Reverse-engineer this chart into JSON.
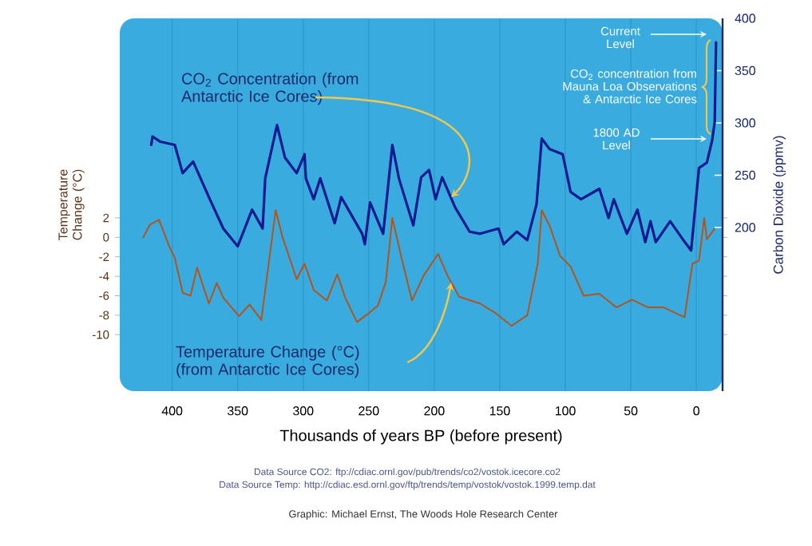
{
  "chart_data": {
    "type": "line",
    "xlabel": "Thousands of years BP (before present)",
    "ylabel": "Temperature Change (°C)",
    "y2label": "Carbon Dioxide (ppmv)",
    "xlim": [
      440,
      -20
    ],
    "xticks": [
      400,
      350,
      300,
      250,
      200,
      150,
      100,
      50,
      0
    ],
    "ylim": [
      -15.8,
      22.5
    ],
    "yticks": [
      -10,
      -8,
      -6,
      -4,
      -2,
      0,
      2
    ],
    "y2lim": [
      43.5,
      400
    ],
    "y2ticks": [
      200,
      250,
      300,
      350,
      400
    ],
    "grid": "x",
    "marker": "none",
    "line_style": "solid",
    "series": [
      {
        "axis": "y2",
        "color": "#0b1a8f",
        "x": [
          416,
          415,
          409,
          398,
          392,
          384,
          372,
          361,
          350,
          339,
          331,
          329,
          320,
          314,
          305,
          299,
          298,
          292,
          287,
          276,
          271,
          255,
          253,
          249,
          239,
          232,
          227,
          216,
          210,
          204,
          199,
          194,
          184,
          173,
          165,
          151,
          147,
          137,
          129,
          122,
          118,
          112,
          102,
          96,
          88,
          74,
          67,
          63,
          53,
          45,
          39,
          35,
          31,
          20,
          10,
          4,
          -2,
          -8,
          -12,
          -14,
          -15
        ],
        "values": [
          279,
          287,
          282,
          279,
          252,
          263,
          229,
          199,
          182,
          217,
          199,
          247,
          298,
          267,
          252,
          270,
          247,
          227,
          247,
          204,
          229,
          194,
          184,
          224,
          194,
          279,
          247,
          202,
          248,
          255,
          227,
          248,
          219,
          196,
          194,
          199,
          184,
          196,
          188,
          222,
          285,
          275,
          270,
          234,
          227,
          237,
          209,
          227,
          194,
          217,
          186,
          206,
          186,
          206,
          188,
          178,
          257,
          262,
          283,
          301,
          377
        ]
      },
      {
        "axis": "y",
        "color": "#b4541c",
        "x": [
          422,
          417,
          410,
          402,
          398,
          392,
          386,
          381,
          372,
          366,
          361,
          349,
          341,
          332,
          321,
          316,
          305,
          299,
          292,
          282,
          274,
          268,
          259,
          251,
          243,
          237,
          232,
          225,
          217,
          208,
          197,
          190,
          181,
          165,
          153,
          141,
          129,
          121,
          118,
          112,
          104,
          96,
          86,
          74,
          61,
          49,
          37,
          25,
          9,
          3,
          -2,
          -6,
          -8,
          -14
        ],
        "values": [
          0,
          1.3,
          1.8,
          -1.0,
          -2.1,
          -5.7,
          -6.0,
          -3.1,
          -6.8,
          -4.7,
          -6.2,
          -8.1,
          -6.9,
          -8.5,
          2.8,
          0.1,
          -4.3,
          -2.7,
          -5.4,
          -6.5,
          -3.8,
          -6.2,
          -8.7,
          -7.9,
          -7.0,
          -4.6,
          2.0,
          -2.1,
          -6.5,
          -3.9,
          -1.7,
          -3.9,
          -6.1,
          -6.8,
          -7.8,
          -9.1,
          -8.0,
          -2.7,
          2.8,
          1.2,
          -1.9,
          -3.0,
          -6.0,
          -5.8,
          -7.2,
          -6.4,
          -7.2,
          -7.2,
          -8.2,
          -2.7,
          -2.4,
          2.0,
          -0.2,
          0.9
        ]
      }
    ],
    "annotations": [
      "CO$_{2}$ Concentration (from Antarctic Ice Cores)",
      "Temperature Change (°C) (from Antarctic Ice Cores)",
      "Current Level",
      "CO$_{2}$ concentration from Mauna Loa Observations & Antarctic Ice Cores",
      "1800 AD Level",
      "Data Source CO2: ftp://cdiac.ornl.gov/pub/trends/co2/vostok.icecore.co2",
      "Data Source Temp: http://cdiac.esd.ornl.gov/ftp/trends/temp/vostok/vostok.1999.temp.dat",
      "Graphic: Michael Ernst, The Woods Hole Research Center"
    ]
  }
}
